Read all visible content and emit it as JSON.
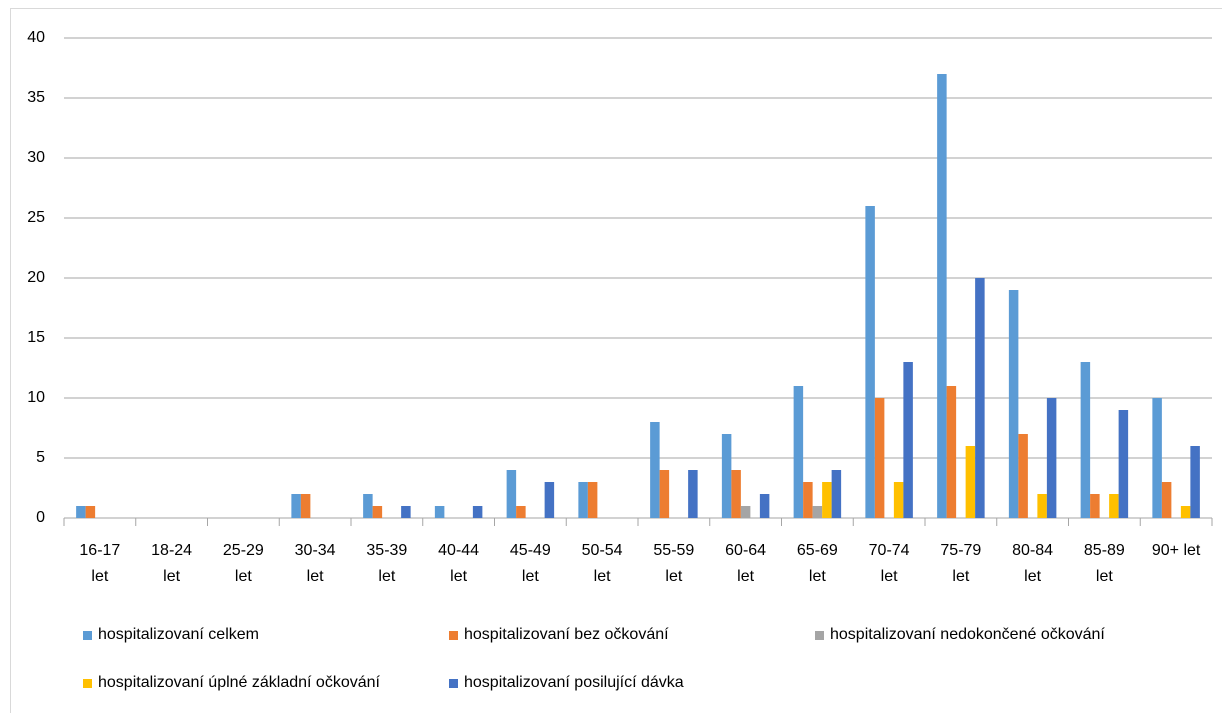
{
  "chart_data": {
    "type": "bar",
    "categories": [
      "16-17\nlet",
      "18-24\nlet",
      "25-29\nlet",
      "30-34\nlet",
      "35-39\nlet",
      "40-44\nlet",
      "45-49\nlet",
      "50-54\nlet",
      "55-59\nlet",
      "60-64\nlet",
      "65-69\nlet",
      "70-74\nlet",
      "75-79\nlet",
      "80-84\nlet",
      "85-89\nlet",
      "90+ let"
    ],
    "series": [
      {
        "name": "hospitalizovaní celkem",
        "color": "#5b9bd5",
        "values": [
          1,
          0,
          0,
          2,
          2,
          1,
          4,
          3,
          8,
          7,
          11,
          26,
          37,
          19,
          13,
          10
        ]
      },
      {
        "name": "hospitalizovaní bez očkování",
        "color": "#ed7d31",
        "values": [
          1,
          0,
          0,
          2,
          1,
          0,
          1,
          3,
          4,
          4,
          3,
          10,
          11,
          7,
          2,
          3
        ]
      },
      {
        "name": "hospitalizovaní nedokončené očkování",
        "color": "#a5a5a5",
        "values": [
          0,
          0,
          0,
          0,
          0,
          0,
          0,
          0,
          0,
          1,
          1,
          0,
          0,
          0,
          0,
          0
        ]
      },
      {
        "name": "hospitalizovaní úplné základní očkování",
        "color": "#ffc000",
        "values": [
          0,
          0,
          0,
          0,
          0,
          0,
          0,
          0,
          0,
          0,
          3,
          3,
          6,
          2,
          2,
          1
        ]
      },
      {
        "name": "hospitalizovaní posilující dávka",
        "color": "#4472c4",
        "values": [
          0,
          0,
          0,
          0,
          1,
          1,
          3,
          0,
          4,
          2,
          4,
          13,
          20,
          10,
          9,
          6
        ]
      }
    ],
    "ylim": [
      0,
      40
    ],
    "yticks": [
      0,
      5,
      10,
      15,
      20,
      25,
      30,
      35,
      40
    ],
    "grid": true,
    "legend": "bottom"
  }
}
